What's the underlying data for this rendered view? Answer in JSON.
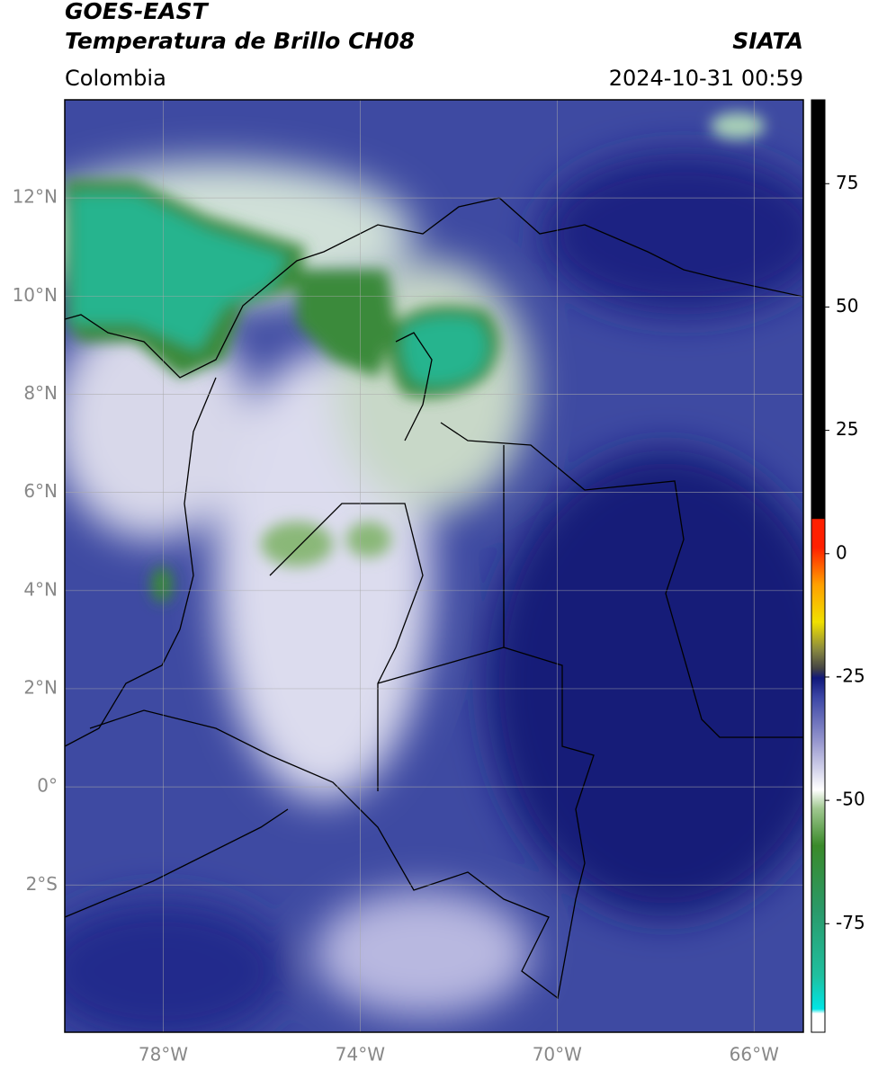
{
  "header": {
    "title": "GOES-EAST",
    "subtitle": "Temperatura de Brillo CH08",
    "source": "SIATA",
    "region": "Colombia",
    "datetime": "2024-10-31 00:59"
  },
  "map": {
    "xlim": [
      -80,
      -65
    ],
    "ylim": [
      -5,
      14
    ],
    "xticks": [
      {
        "value": -78,
        "label": "78°W"
      },
      {
        "value": -74,
        "label": "74°W"
      },
      {
        "value": -70,
        "label": "70°W"
      },
      {
        "value": -66,
        "label": "66°W"
      }
    ],
    "yticks": [
      {
        "value": 12,
        "label": "12°N"
      },
      {
        "value": 10,
        "label": "10°N"
      },
      {
        "value": 8,
        "label": "8°N"
      },
      {
        "value": 6,
        "label": "6°N"
      },
      {
        "value": 4,
        "label": "4°N"
      },
      {
        "value": 2,
        "label": "2°N"
      },
      {
        "value": 0,
        "label": "0°"
      },
      {
        "value": -2,
        "label": "2°S"
      }
    ]
  },
  "colorbar": {
    "lim": [
      -97,
      92
    ],
    "ticks": [
      75,
      50,
      25,
      0,
      -25,
      -50,
      -75
    ]
  }
}
